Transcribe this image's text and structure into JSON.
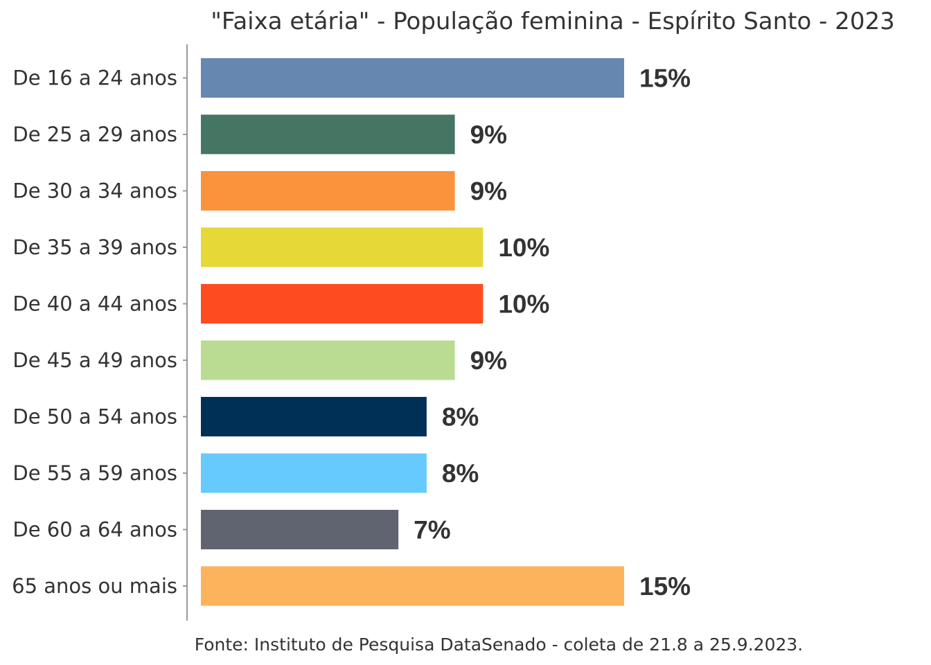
{
  "chart_data": {
    "type": "bar",
    "orientation": "horizontal",
    "title": "\"Faixa etária\" - População feminina - Espírito Santo - 2023",
    "source": "Fonte: Instituto de Pesquisa DataSenado - coleta de 21.8 a 25.9.2023.",
    "categories": [
      "De 16 a 24 anos",
      "De 25 a 29 anos",
      "De 30 a 34 anos",
      "De 35 a 39 anos",
      "De 40 a 44 anos",
      "De 45 a 49 anos",
      "De 50 a 54 anos",
      "De 55 a 59 anos",
      "De 60 a 64 anos",
      "65 anos ou mais"
    ],
    "values": [
      15,
      9,
      9,
      10,
      10,
      9,
      8,
      8,
      7,
      15
    ],
    "value_labels": [
      "15%",
      "9%",
      "9%",
      "10%",
      "10%",
      "9%",
      "8%",
      "8%",
      "7%",
      "15%"
    ],
    "colors": [
      "#6688B0",
      "#457563",
      "#FB933D",
      "#E5D837",
      "#FF4B20",
      "#B9DB92",
      "#003055",
      "#66CAFF",
      "#5F6470",
      "#FDB35B"
    ],
    "xlim": [
      0,
      15
    ],
    "grid": false,
    "legend": "none"
  }
}
